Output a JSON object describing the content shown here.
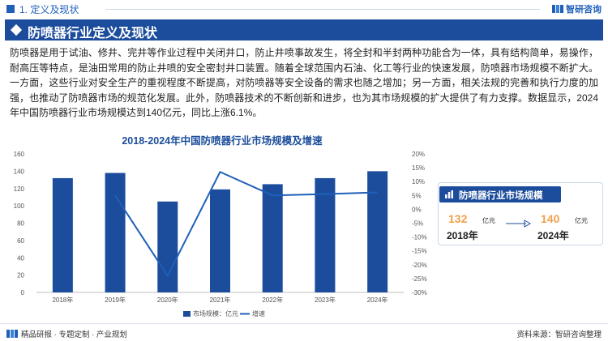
{
  "header": {
    "section": "1. 定义及现状",
    "brand": "智研咨询"
  },
  "title_bar": {
    "title": "防喷器行业定义及现状"
  },
  "paragraph": "防喷器是用于试油、修井、完井等作业过程中关闭井口，防止井喷事故发生，将全封和半封两种功能合为一体，具有结构简单，易操作，耐高压等特点，是油田常用的防止井喷的安全密封井口装置。随着全球范围内石油、化工等行业的快速发展，防喷器市场规模不断扩大。一方面，这些行业对安全生产的重视程度不断提高，对防喷器等安全设备的需求也随之增加；另一方面，相关法规的完善和执行力度的加强，也推动了防喷器市场的规范化发展。此外，防喷器技术的不断创新和进步，也为其市场规模的扩大提供了有力支撑。数据显示，2024年中国防喷器行业市场规模达到140亿元，同比上涨6.1%。",
  "chart_data": {
    "type": "bar",
    "title": "2018-2024年中国防喷器行业市场规模及增速",
    "categories": [
      "2018年",
      "2019年",
      "2020年",
      "2021年",
      "2022年",
      "2023年",
      "2024年"
    ],
    "series": [
      {
        "name": "市场规模：亿元",
        "type": "bar",
        "axis": "left",
        "values": [
          132,
          138,
          105,
          119,
          125,
          132,
          140
        ]
      },
      {
        "name": "增速",
        "type": "line",
        "axis": "right",
        "values": [
          null,
          5,
          -24,
          13.5,
          5,
          5.5,
          6.1
        ]
      }
    ],
    "ylim_left": [
      0,
      160
    ],
    "yticks_left": [
      "0",
      "20",
      "40",
      "60",
      "80",
      "100",
      "120",
      "140",
      "160"
    ],
    "ylim_right": [
      -30,
      20
    ],
    "yticks_right": [
      "-30%",
      "-25%",
      "-20%",
      "-15%",
      "-10%",
      "-5%",
      "0%",
      "5%",
      "10%",
      "15%",
      "20%"
    ],
    "legend_position": "bottom",
    "colors": {
      "bar": "#1c4d9c",
      "line": "#1f5fb8"
    }
  },
  "panel": {
    "title": "防喷器行业市场规模",
    "start_value": "132",
    "start_unit": "亿元",
    "start_year": "2018年",
    "end_value": "140",
    "end_unit": "亿元",
    "end_year": "2024年"
  },
  "footer": {
    "left": "精品研报 · 专题定制 · 产业规划",
    "right": "资料来源：智研咨询整理"
  }
}
